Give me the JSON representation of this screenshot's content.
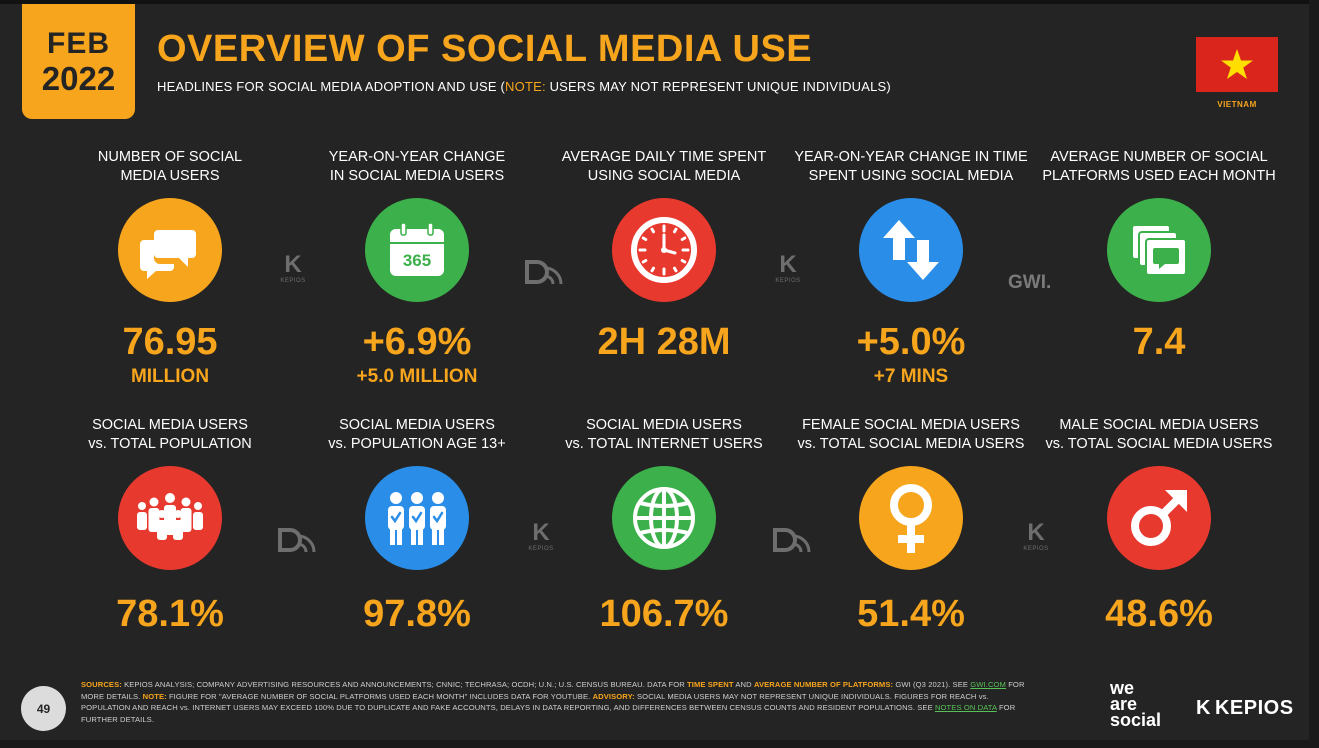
{
  "badge": {
    "month": "FEB",
    "year": "2022"
  },
  "title": "OVERVIEW OF SOCIAL MEDIA USE",
  "subtitle": {
    "pre": "HEADLINES FOR SOCIAL MEDIA ADOPTION AND USE (",
    "note": "NOTE:",
    "post": " USERS MAY NOT REPRESENT UNIQUE INDIVIDUALS)"
  },
  "country": "VIETNAM",
  "colors": {
    "accent": "#f7a51c",
    "green": "#3cb04a",
    "red": "#e8392f",
    "blue": "#2a8ee8",
    "flag": "#da251d",
    "flag_star": "#ffde00"
  },
  "row1": [
    {
      "label1": "NUMBER OF SOCIAL",
      "label2": "MEDIA USERS",
      "icon": "speech-bubbles-icon",
      "color": "orange",
      "value": "76.95",
      "sub": "MILLION"
    },
    {
      "label1": "YEAR-ON-YEAR CHANGE",
      "label2": "IN SOCIAL MEDIA USERS",
      "icon": "calendar-365-icon",
      "color": "green",
      "value": "+6.9%",
      "sub": "+5.0 MILLION",
      "cal": "365"
    },
    {
      "label1": "AVERAGE DAILY TIME SPENT",
      "label2": "USING SOCIAL MEDIA",
      "icon": "clock-icon",
      "color": "red",
      "value": "2H 28M",
      "sub": ""
    },
    {
      "label1": "YEAR-ON-YEAR CHANGE IN TIME",
      "label2": "SPENT USING SOCIAL MEDIA",
      "icon": "up-down-arrows-icon",
      "color": "blue",
      "value": "+5.0%",
      "sub": "+7 MINS"
    },
    {
      "label1": "AVERAGE NUMBER OF SOCIAL",
      "label2": "PLATFORMS USED EACH MONTH",
      "icon": "stacked-windows-icon",
      "color": "green",
      "value": "7.4",
      "sub": ""
    }
  ],
  "row2": [
    {
      "label1": "SOCIAL MEDIA USERS",
      "label2": "vs. TOTAL POPULATION",
      "icon": "crowd-icon",
      "color": "red",
      "value": "78.1%"
    },
    {
      "label1": "SOCIAL MEDIA USERS",
      "label2": "vs. POPULATION AGE 13+",
      "icon": "adults-check-icon",
      "color": "blue",
      "value": "97.8%"
    },
    {
      "label1": "SOCIAL MEDIA USERS",
      "label2": "vs. TOTAL INTERNET USERS",
      "icon": "globe-icon",
      "color": "green",
      "value": "106.7%"
    },
    {
      "label1": "FEMALE SOCIAL MEDIA USERS",
      "label2": "vs. TOTAL SOCIAL MEDIA USERS",
      "icon": "female-symbol-icon",
      "color": "orange",
      "value": "51.4%"
    },
    {
      "label1": "MALE SOCIAL MEDIA USERS",
      "label2": "vs. TOTAL SOCIAL MEDIA USERS",
      "icon": "male-symbol-icon",
      "color": "red",
      "value": "48.6%"
    }
  ],
  "partner_logos": {
    "kepios_text": "KEPIOS",
    "gwi": "GWI."
  },
  "footer": {
    "page": "49",
    "s_sources": "SOURCES:",
    "s1": " KEPIOS ANALYSIS; COMPANY ADVERTISING RESOURCES AND ANNOUNCEMENTS; CNNIC; TECHRASA; OCDH; U.N.; U.S. CENSUS BUREAU. DATA FOR ",
    "s_time": "TIME SPENT",
    "s2": " AND ",
    "s_avg": "AVERAGE NUMBER OF PLATFORMS:",
    "s3": " GWI (Q3 2021). SEE ",
    "s_gwi": "GWI.COM",
    "s4": " FOR MORE DETAILS. ",
    "s_note": "NOTE:",
    "s5": " FIGURE FOR \"AVERAGE NUMBER OF SOCIAL PLATFORMS USED EACH MONTH\" INCLUDES DATA FOR YOUTUBE. ",
    "s_adv": "ADVISORY:",
    "s6": " SOCIAL MEDIA USERS MAY NOT REPRESENT UNIQUE INDIVIDUALS. FIGURES FOR REACH vs. POPULATION AND REACH vs. INTERNET USERS MAY EXCEED 100% DUE TO DUPLICATE AND FAKE ACCOUNTS, DELAYS IN DATA REPORTING, AND DIFFERENCES BETWEEN CENSUS COUNTS AND RESIDENT POPULATIONS. SEE ",
    "s_notes": "NOTES ON DATA",
    "s7": " FOR FURTHER DETAILS.",
    "brand1": "we",
    "brand2": "are",
    "brand3": "social",
    "brand_kepios": "KEPIOS"
  }
}
